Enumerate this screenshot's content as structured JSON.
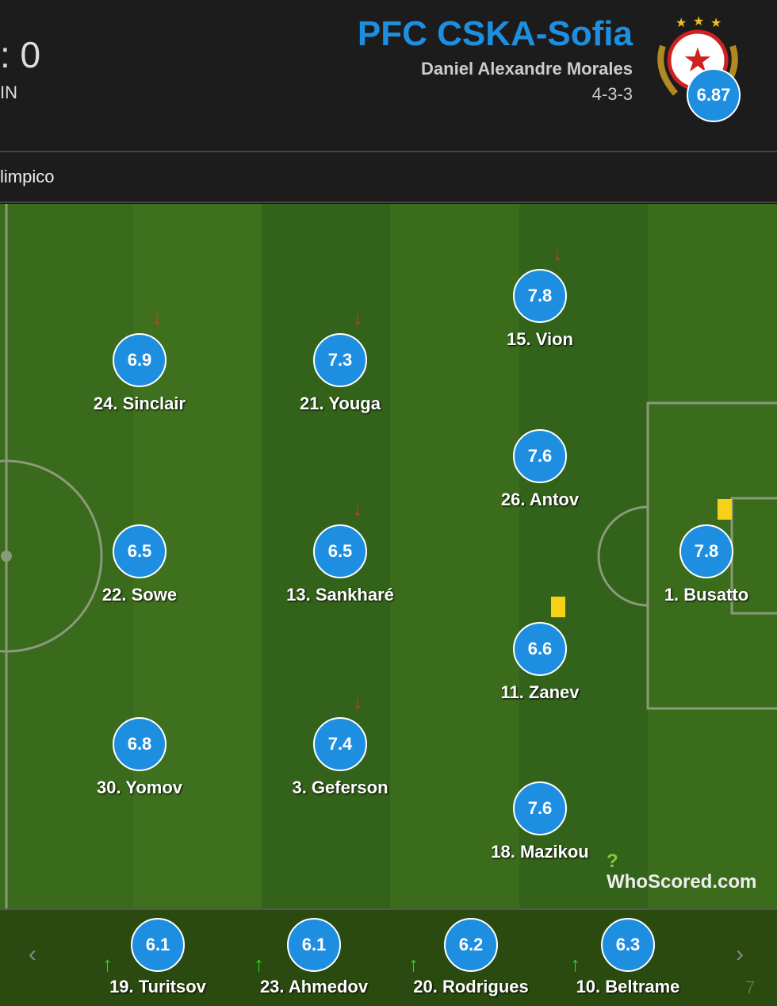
{
  "header": {
    "score": ": 0",
    "status": "IN",
    "team_name": "PFC CSKA-Sofia",
    "manager": "Daniel Alexandre Morales",
    "formation": "4-3-3",
    "team_rating": "6.87",
    "venue": "limpico"
  },
  "colors": {
    "accent": "#1e8fe0",
    "pitch_dark": "#33621a",
    "pitch_light": "#3b6c1c",
    "bench": "#2a4a0f",
    "sub_off": "#e83030",
    "sub_on": "#22dd22",
    "yellow_card": "#f7d117"
  },
  "players": [
    {
      "name": "15. Vion",
      "rating": "7.8",
      "sub_off": true,
      "yellow": false
    },
    {
      "name": "24. Sinclair",
      "rating": "6.9",
      "sub_off": true,
      "yellow": false
    },
    {
      "name": "21. Youga",
      "rating": "7.3",
      "sub_off": true,
      "yellow": false
    },
    {
      "name": "26. Antov",
      "rating": "7.6",
      "sub_off": false,
      "yellow": false
    },
    {
      "name": "22. Sowe",
      "rating": "6.5",
      "sub_off": false,
      "yellow": false
    },
    {
      "name": "13. Sankharé",
      "rating": "6.5",
      "sub_off": true,
      "yellow": false
    },
    {
      "name": "1. Busatto",
      "rating": "7.8",
      "sub_off": false,
      "yellow": true
    },
    {
      "name": "11. Zanev",
      "rating": "6.6",
      "sub_off": false,
      "yellow": true
    },
    {
      "name": "30. Yomov",
      "rating": "6.8",
      "sub_off": false,
      "yellow": false
    },
    {
      "name": "3. Geferson",
      "rating": "7.4",
      "sub_off": true,
      "yellow": false
    },
    {
      "name": "18. Mazikou",
      "rating": "7.6",
      "sub_off": false,
      "yellow": false
    }
  ],
  "bench": [
    {
      "name": "19. Turitsov",
      "rating": "6.1"
    },
    {
      "name": "23. Ahmedov",
      "rating": "6.1"
    },
    {
      "name": "20. Rodrigues",
      "rating": "6.2"
    },
    {
      "name": "10. Beltrame",
      "rating": "6.3"
    }
  ],
  "bench_partial": "7",
  "watermark": "WhoScored.com",
  "icons": {
    "prev": "chevron-left-icon",
    "next": "chevron-right-icon",
    "sub_off": "arrow-down-icon",
    "sub_on": "arrow-up-icon"
  }
}
